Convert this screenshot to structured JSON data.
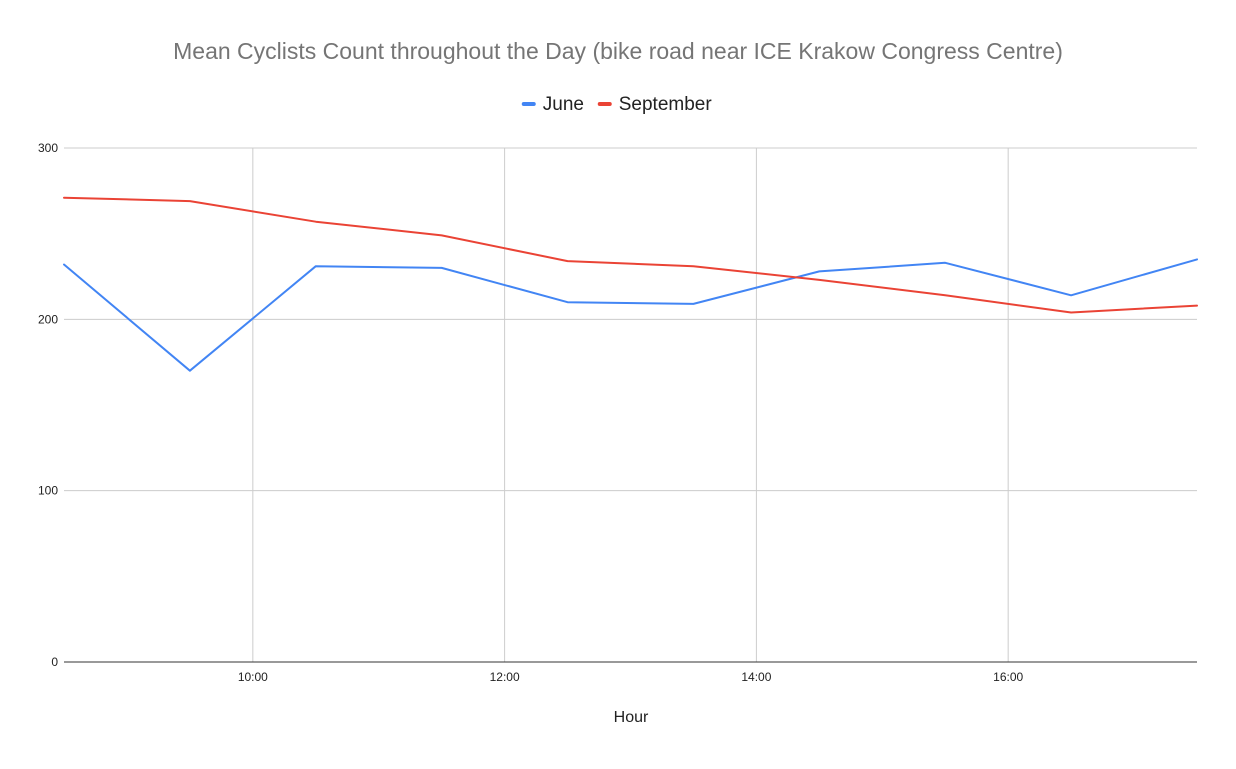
{
  "chart_data": {
    "type": "line",
    "title": "Mean Cyclists Count throughout the Day (bike road near ICE Krakow Congress Centre)",
    "xlabel": "Hour",
    "ylabel": "",
    "ylim": [
      0,
      300
    ],
    "xlim": [
      "08:30",
      "17:30"
    ],
    "yticks": [
      "0",
      "100",
      "200",
      "300"
    ],
    "xticks": [
      "10:00",
      "12:00",
      "14:00",
      "16:00"
    ],
    "x": [
      "08:30",
      "09:30",
      "10:30",
      "11:30",
      "12:30",
      "13:30",
      "14:30",
      "15:30",
      "16:30",
      "17:30"
    ],
    "series": [
      {
        "name": "June",
        "color": "#4285f4",
        "values": [
          232,
          170,
          231,
          230,
          210,
          209,
          228,
          233,
          214,
          235
        ]
      },
      {
        "name": "September",
        "color": "#ea4335",
        "values": [
          271,
          269,
          257,
          249,
          234,
          231,
          223,
          214,
          204,
          208
        ]
      }
    ],
    "legend_position": "top",
    "grid": true
  }
}
